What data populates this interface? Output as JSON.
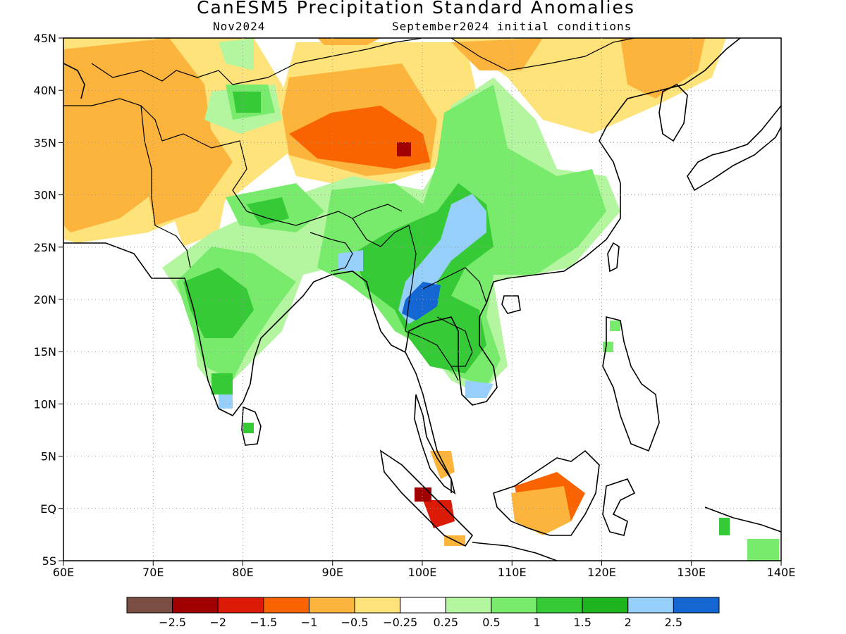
{
  "title": "CanESM5 Precipitation Standard Anomalies",
  "valid_month": "Nov2024",
  "initial_conditions": "September2024 initial conditions",
  "axes": {
    "lon_range": [
      60,
      140
    ],
    "lat_range": [
      -5,
      45
    ],
    "lon_labels": [
      "60E",
      "70E",
      "80E",
      "90E",
      "100E",
      "110E",
      "120E",
      "130E",
      "140E"
    ],
    "lat_labels": [
      "5S",
      "EQ",
      "5N",
      "10N",
      "15N",
      "20N",
      "25N",
      "30N",
      "35N",
      "40N",
      "45N"
    ],
    "gridlines": "dotted"
  },
  "legend": {
    "placement": "bottom",
    "colors": [
      "#7a4e42",
      "#a00000",
      "#dc1a08",
      "#fa6400",
      "#fcb43c",
      "#fee27a",
      "#ffffff",
      "#b4f5a0",
      "#78ea6c",
      "#37ca37",
      "#1eb41e",
      "#96d0fa",
      "#1466d2"
    ],
    "labels": [
      "−2.5",
      "−2",
      "−1.5",
      "−1",
      "−0.5",
      "−0.25",
      "0.25",
      "0.5",
      "1",
      "1.5",
      "2",
      "2.5"
    ]
  },
  "features": [
    {
      "name": "northern-india-dry-anomaly",
      "lon": [
        60,
        87
      ],
      "lat": [
        30,
        42
      ],
      "level": "-0.5"
    },
    {
      "name": "tibet-dry-anomaly",
      "lon": [
        85,
        103
      ],
      "lat": [
        32,
        38
      ],
      "level": "-1"
    },
    {
      "name": "tibet-dry-core",
      "lon": [
        97,
        98
      ],
      "lat": [
        34.5,
        35.5
      ],
      "level": "-2"
    },
    {
      "name": "northeast-china-dry-anomaly",
      "lon": [
        115,
        130
      ],
      "lat": [
        35,
        45
      ],
      "level": "-0.5"
    },
    {
      "name": "south-asia-wet-anomaly",
      "lon": [
        74,
        110
      ],
      "lat": [
        10,
        32
      ],
      "level": "1"
    },
    {
      "name": "yunnan-wet-core",
      "lon": [
        100,
        108
      ],
      "lat": [
        24,
        30
      ],
      "level": "2"
    },
    {
      "name": "myanmar-thailand-wet-core",
      "lon": [
        97,
        101
      ],
      "lat": [
        18,
        21
      ],
      "level": "2.5"
    },
    {
      "name": "sumatra-dry-anomaly",
      "lon": [
        99,
        104
      ],
      "lat": [
        -4,
        6
      ],
      "level": "-1.5"
    },
    {
      "name": "borneo-dry-anomaly",
      "lon": [
        110,
        118
      ],
      "lat": [
        -3,
        4
      ],
      "level": "-1"
    }
  ]
}
